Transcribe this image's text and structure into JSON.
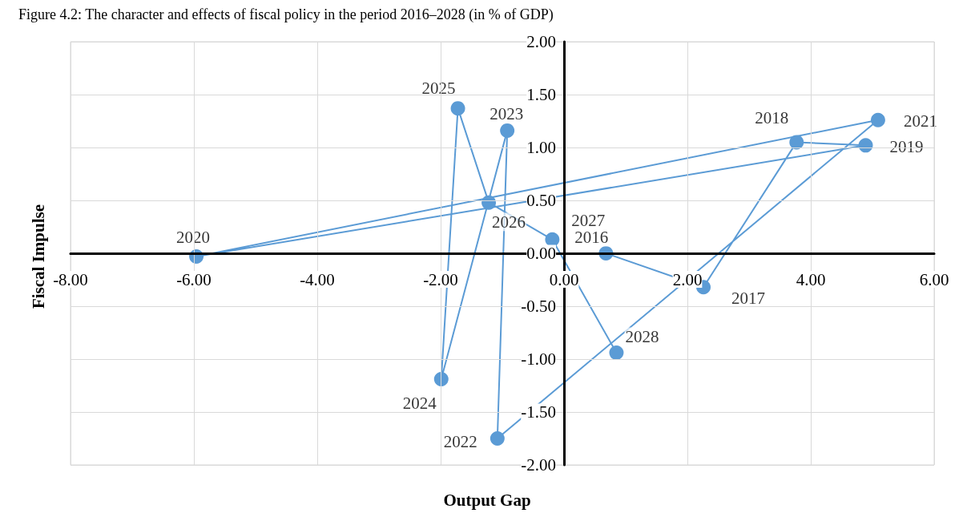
{
  "chart_data": {
    "type": "line",
    "title": "Figure 4.2: The character and effects of fiscal policy in the period 2016–2028 (in % of GDP)",
    "xlabel": "Output Gap",
    "ylabel": "Fiscal Impulse",
    "x": [
      0.68,
      2.26,
      3.77,
      4.89,
      -5.96,
      5.09,
      -1.08,
      -0.92,
      -1.99,
      -1.72,
      -1.22,
      -0.19,
      0.85
    ],
    "values": [
      0.0,
      -0.32,
      1.05,
      1.02,
      -0.03,
      1.26,
      -1.75,
      1.16,
      -1.19,
      1.37,
      0.48,
      0.13,
      -0.94
    ],
    "color": "#5b9bd5",
    "marker": "circle",
    "line_style": "solid",
    "grid": true,
    "xlim": [
      -8,
      6
    ],
    "xticks": [
      {
        "value": -8,
        "label": "-8.00"
      },
      {
        "value": -6,
        "label": "-6.00"
      },
      {
        "value": -4,
        "label": "-4.00"
      },
      {
        "value": -2,
        "label": "-2.00"
      },
      {
        "value": 0,
        "label": "0.00"
      },
      {
        "value": 2,
        "label": "2.00"
      },
      {
        "value": 4,
        "label": "4.00"
      },
      {
        "value": 6,
        "label": "6.00"
      }
    ],
    "ylim": [
      -2,
      2
    ],
    "yticks": [
      {
        "value": -2,
        "label": "-2.00"
      },
      {
        "value": -1.5,
        "label": "-1.50"
      },
      {
        "value": -1,
        "label": "-1.00"
      },
      {
        "value": -0.5,
        "label": "-0.50"
      },
      {
        "value": 0,
        "label": "0.00"
      },
      {
        "value": 0.5,
        "label": "0.50"
      },
      {
        "value": 1,
        "label": "1.00"
      },
      {
        "value": 1.5,
        "label": "1.50"
      },
      {
        "value": 2,
        "label": "2.00"
      }
    ],
    "annotations": [
      {
        "text": "2016",
        "x": 0.68,
        "y": 0.0
      },
      {
        "text": "2017",
        "x": 2.26,
        "y": -0.32
      },
      {
        "text": "2018",
        "x": 3.77,
        "y": 1.05
      },
      {
        "text": "2019",
        "x": 4.89,
        "y": 1.02
      },
      {
        "text": "2020",
        "x": -5.96,
        "y": -0.03
      },
      {
        "text": "2021",
        "x": 5.09,
        "y": 1.26
      },
      {
        "text": "2022",
        "x": -1.08,
        "y": -1.75
      },
      {
        "text": "2023",
        "x": -0.92,
        "y": 1.16
      },
      {
        "text": "2024",
        "x": -1.99,
        "y": -1.19
      },
      {
        "text": "2025",
        "x": -1.72,
        "y": 1.37
      },
      {
        "text": "2026",
        "x": -1.22,
        "y": 0.48
      },
      {
        "text": "2027",
        "x": -0.19,
        "y": 0.13
      },
      {
        "text": "2028",
        "x": 0.85,
        "y": -0.94
      }
    ]
  }
}
